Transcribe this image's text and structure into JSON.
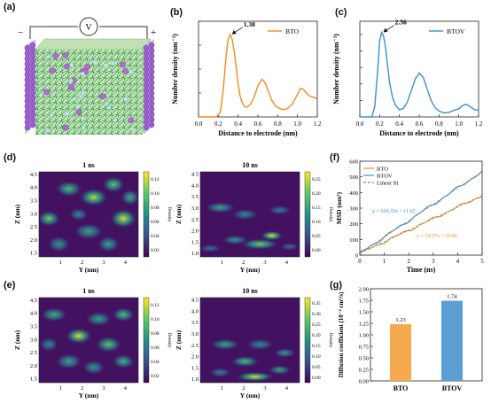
{
  "labels": {
    "a": "(a)",
    "b": "(b)",
    "c": "(c)",
    "d": "(d)",
    "e": "(e)",
    "f": "(f)",
    "g": "(g)"
  },
  "panel_a": {
    "minus": "−",
    "plus": "+",
    "voltmeter": "V"
  },
  "chart_data": [
    {
      "id": "b",
      "type": "line",
      "xlabel": "Distance to electrode (nm)",
      "ylabel": "Number density (nm⁻³)",
      "xlim": [
        0,
        1.2
      ],
      "xticks": [
        "0.0",
        "0.2",
        "0.4",
        "0.6",
        "0.8",
        "1.0",
        "1.2"
      ],
      "legend": "top-right",
      "series": [
        {
          "name": "BTO",
          "color": "#f08c1c",
          "x": [
            0,
            0.18,
            0.22,
            0.25,
            0.28,
            0.3,
            0.32,
            0.34,
            0.36,
            0.38,
            0.4,
            0.42,
            0.45,
            0.48,
            0.52,
            0.56,
            0.6,
            0.64,
            0.67,
            0.7,
            0.74,
            0.78,
            0.82,
            0.86,
            0.9,
            0.95,
            1.0,
            1.03,
            1.06,
            1.09,
            1.12,
            1.16,
            1.2
          ],
          "y": [
            0,
            0,
            0.08,
            0.45,
            1.05,
            1.3,
            1.38,
            1.3,
            1.1,
            0.85,
            0.55,
            0.35,
            0.2,
            0.16,
            0.2,
            0.32,
            0.52,
            0.63,
            0.58,
            0.45,
            0.28,
            0.18,
            0.14,
            0.12,
            0.14,
            0.22,
            0.38,
            0.48,
            0.46,
            0.4,
            0.35,
            0.33,
            0.3
          ]
        }
      ],
      "annotations": [
        {
          "text": "1.38",
          "x": 0.32,
          "y": 1.38
        }
      ]
    },
    {
      "id": "c",
      "type": "line",
      "xlabel": "Distance to electrode (nm)",
      "ylabel": "Number density (nm⁻³)",
      "xlim": [
        0,
        1.2
      ],
      "xticks": [
        "0.0",
        "0.2",
        "0.4",
        "0.6",
        "0.8",
        "1.0",
        "1.2"
      ],
      "legend": "top-right",
      "series": [
        {
          "name": "BTOV",
          "color": "#3d8fc8",
          "x": [
            0,
            0.12,
            0.15,
            0.18,
            0.2,
            0.22,
            0.24,
            0.26,
            0.28,
            0.3,
            0.33,
            0.36,
            0.4,
            0.44,
            0.48,
            0.52,
            0.56,
            0.6,
            0.64,
            0.68,
            0.72,
            0.76,
            0.8,
            0.85,
            0.9,
            0.95,
            1.0,
            1.04,
            1.08,
            1.12,
            1.16,
            1.2
          ],
          "y": [
            0,
            0,
            0.3,
            1.4,
            2.3,
            2.56,
            2.45,
            2.1,
            1.55,
            1.05,
            0.6,
            0.35,
            0.22,
            0.25,
            0.45,
            0.8,
            1.15,
            1.33,
            1.2,
            0.85,
            0.5,
            0.28,
            0.18,
            0.12,
            0.14,
            0.2,
            0.25,
            0.35,
            0.38,
            0.3,
            0.22,
            0.2
          ]
        }
      ],
      "annotations": [
        {
          "text": "2.56",
          "x": 0.22,
          "y": 2.56
        }
      ]
    },
    {
      "id": "f",
      "type": "line",
      "xlabel": "Time (ns)",
      "ylabel": "MSD (nm²)",
      "xlim": [
        0,
        5
      ],
      "ylim": [
        0,
        600
      ],
      "xticks": [
        "0",
        "1",
        "2",
        "3",
        "4",
        "5"
      ],
      "yticks": [
        "0",
        "100",
        "200",
        "300",
        "400",
        "500",
        "600"
      ],
      "legend": "top-left",
      "series": [
        {
          "name": "BTO",
          "color": "#f08c1c",
          "slope": 74.07,
          "intercept": 10.86
        },
        {
          "name": "BTOV",
          "color": "#3d8fc8",
          "slope": 104.33,
          "intercept": 11.65
        },
        {
          "name": "Linear fit",
          "color": "#888888",
          "dashed": true
        }
      ],
      "annotations": [
        {
          "text": "y = 104.33x + 11.65",
          "color": "#3d8fc8"
        },
        {
          "text": "y = 74.07x + 10.86",
          "color": "#f08c1c"
        }
      ]
    },
    {
      "id": "g",
      "type": "bar",
      "ylabel": "Diffusion coefficient (10⁻⁴ cm²/s)",
      "categories": [
        "BTO",
        "BTOV"
      ],
      "values": [
        1.23,
        1.74
      ],
      "colors": [
        "#f7a94d",
        "#5b9fd4"
      ],
      "ylim": [
        0,
        2.0
      ],
      "yticks": [
        "0.00",
        "0.25",
        "0.50",
        "0.75",
        "1.00",
        "1.25",
        "1.50",
        "1.75",
        "2.00"
      ]
    },
    {
      "id": "d1",
      "type": "heatmap",
      "title": "1 ns",
      "xlabel": "Y (nm)",
      "ylabel": "Z (nm)",
      "xticks": [
        "1",
        "2",
        "3",
        "4"
      ],
      "yticks": [
        "1.5",
        "2.0",
        "2.5",
        "3.0",
        "3.5",
        "4.0",
        "4.5"
      ],
      "cbar_label": "Density",
      "cbar_ticks": [
        "0.02",
        "0.04",
        "0.06",
        "0.08",
        "0.10",
        "0.12"
      ]
    },
    {
      "id": "d2",
      "type": "heatmap",
      "title": "10 ns",
      "xlabel": "Y (nm)",
      "ylabel": "Z (nm)",
      "xticks": [
        "1",
        "2",
        "3",
        "4"
      ],
      "yticks": [
        "1.0",
        "1.5",
        "2.0",
        "2.5",
        "3.0",
        "3.5",
        "4.0",
        "4.5"
      ],
      "cbar_label": "Density",
      "cbar_ticks": [
        "0.00",
        "0.05",
        "0.10",
        "0.15",
        "0.20",
        "0.25"
      ]
    },
    {
      "id": "e1",
      "type": "heatmap",
      "title": "1 ns",
      "xlabel": "Y (nm)",
      "ylabel": "Z (nm)",
      "xticks": [
        "1",
        "2",
        "3",
        "4"
      ],
      "yticks": [
        "1.5",
        "2.0",
        "2.5",
        "3.0",
        "3.5",
        "4.0",
        "4.5"
      ],
      "cbar_label": "Density",
      "cbar_ticks": [
        "0.02",
        "0.04",
        "0.06",
        "0.08",
        "0.10",
        "0.12"
      ]
    },
    {
      "id": "e2",
      "type": "heatmap",
      "title": "10 ns",
      "xlabel": "Y (nm)",
      "ylabel": "Z (nm)",
      "xticks": [
        "1",
        "2",
        "3",
        "4"
      ],
      "yticks": [
        "1.0",
        "1.5",
        "2.0",
        "2.5",
        "3.0",
        "3.5",
        "4.0",
        "4.5"
      ],
      "cbar_label": "Density",
      "cbar_ticks": [
        "0.00",
        "0.05",
        "0.10",
        "0.15",
        "0.20",
        "0.25",
        "0.30",
        "0.35"
      ]
    }
  ]
}
